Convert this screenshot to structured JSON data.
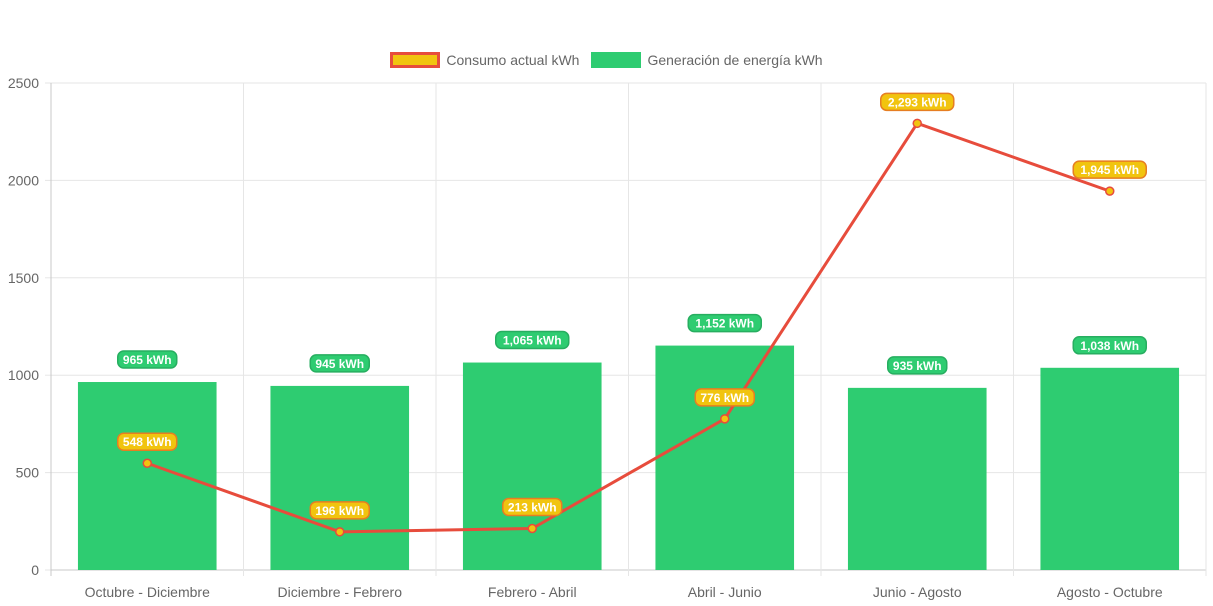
{
  "chart_data": {
    "type": "bar",
    "categories": [
      "Octubre - Diciembre",
      "Diciembre - Febrero",
      "Febrero - Abril",
      "Abril - Junio",
      "Junio - Agosto",
      "Agosto - Octubre"
    ],
    "series": [
      {
        "name": "Consumo actual kWh",
        "type": "line",
        "values": [
          548,
          196,
          213,
          776,
          2293,
          1945
        ],
        "labels": [
          "548 kWh",
          "196 kWh",
          "213 kWh",
          "776 kWh",
          "2,293 kWh",
          "1,945 kWh"
        ],
        "color": "#e74c3c",
        "fill": "#f1c40f"
      },
      {
        "name": "Generación de energía kWh",
        "type": "bar",
        "values": [
          965,
          945,
          1065,
          1152,
          935,
          1038
        ],
        "labels": [
          "965 kWh",
          "945 kWh",
          "1,065 kWh",
          "1,152 kWh",
          "935 kWh",
          "1,038 kWh"
        ],
        "color": "#2ecc71"
      }
    ],
    "yticks": [
      "0",
      "500",
      "1000",
      "1500",
      "2000",
      "2500"
    ],
    "ylim": [
      0,
      2500
    ],
    "grid": true,
    "legend_position": "top"
  }
}
